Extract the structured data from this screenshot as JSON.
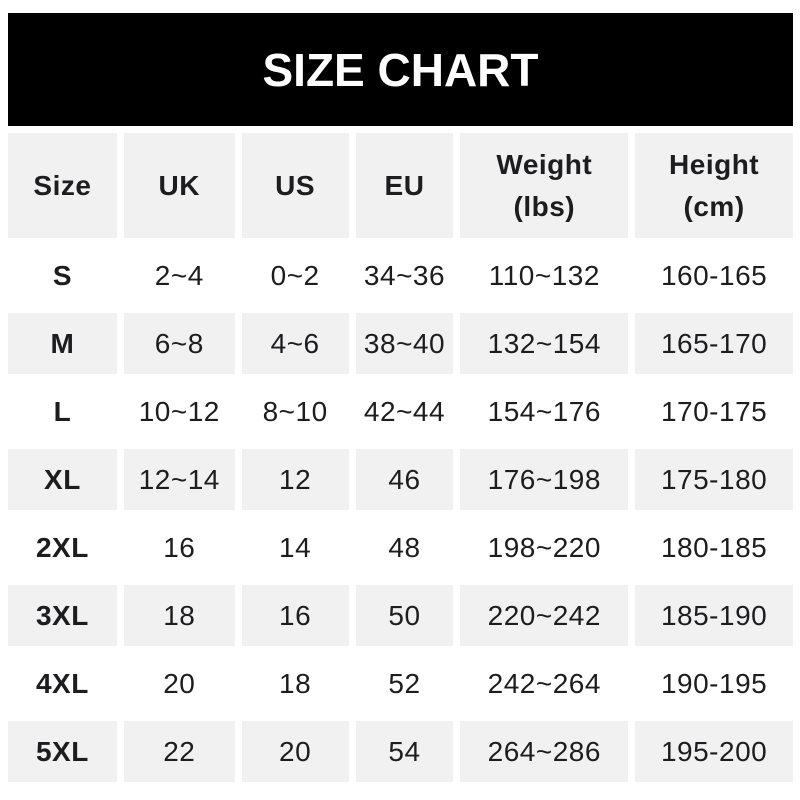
{
  "banner": {
    "title": "SIZE CHART"
  },
  "colors": {
    "banner_bg": "#000000",
    "banner_text": "#ffffff",
    "row_shade": "#f1f1f2",
    "text": "#1d1d1f"
  },
  "table": {
    "columns": [
      {
        "label": "Size"
      },
      {
        "label": "UK"
      },
      {
        "label": "US"
      },
      {
        "label": "EU"
      },
      {
        "label": "Weight",
        "label2": "(lbs)"
      },
      {
        "label": "Height",
        "label2": "(cm)"
      }
    ],
    "rows": [
      {
        "size": "S",
        "uk": "2~4",
        "us": "0~2",
        "eu": "34~36",
        "weight": "110~132",
        "height": "160-165"
      },
      {
        "size": "M",
        "uk": "6~8",
        "us": "4~6",
        "eu": "38~40",
        "weight": "132~154",
        "height": "165-170"
      },
      {
        "size": "L",
        "uk": "10~12",
        "us": "8~10",
        "eu": "42~44",
        "weight": "154~176",
        "height": "170-175"
      },
      {
        "size": "XL",
        "uk": "12~14",
        "us": "12",
        "eu": "46",
        "weight": "176~198",
        "height": "175-180"
      },
      {
        "size": "2XL",
        "uk": "16",
        "us": "14",
        "eu": "48",
        "weight": "198~220",
        "height": "180-185"
      },
      {
        "size": "3XL",
        "uk": "18",
        "us": "16",
        "eu": "50",
        "weight": "220~242",
        "height": "185-190"
      },
      {
        "size": "4XL",
        "uk": "20",
        "us": "18",
        "eu": "52",
        "weight": "242~264",
        "height": "190-195"
      },
      {
        "size": "5XL",
        "uk": "22",
        "us": "20",
        "eu": "54",
        "weight": "264~286",
        "height": "195-200"
      }
    ]
  },
  "chart_data": {
    "type": "table",
    "title": "SIZE CHART",
    "columns": [
      "Size",
      "UK",
      "US",
      "EU",
      "Weight (lbs)",
      "Height (cm)"
    ],
    "rows": [
      [
        "S",
        "2~4",
        "0~2",
        "34~36",
        "110~132",
        "160-165"
      ],
      [
        "M",
        "6~8",
        "4~6",
        "38~40",
        "132~154",
        "165-170"
      ],
      [
        "L",
        "10~12",
        "8~10",
        "42~44",
        "154~176",
        "170-175"
      ],
      [
        "XL",
        "12~14",
        "12",
        "46",
        "176~198",
        "175-180"
      ],
      [
        "2XL",
        "16",
        "14",
        "48",
        "198~220",
        "180-185"
      ],
      [
        "3XL",
        "18",
        "16",
        "50",
        "220~242",
        "185-190"
      ],
      [
        "4XL",
        "20",
        "18",
        "52",
        "242~264",
        "190-195"
      ],
      [
        "5XL",
        "22",
        "20",
        "54",
        "264~286",
        "195-200"
      ]
    ]
  }
}
